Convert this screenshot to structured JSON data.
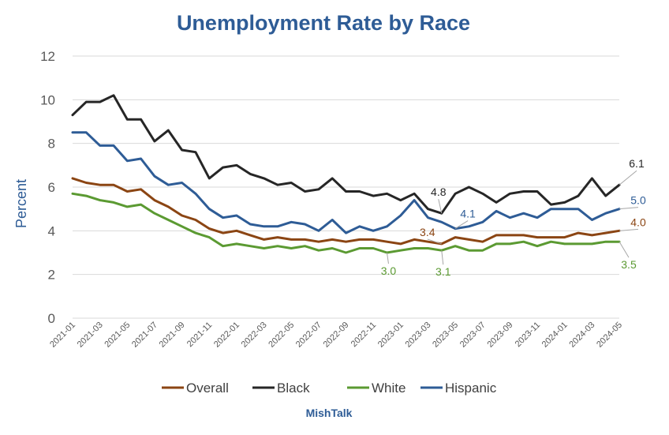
{
  "chart_data": {
    "type": "line",
    "title": "Unemployment Rate by Race",
    "xlabel": "",
    "ylabel": "Percent",
    "ylim": [
      0,
      12
    ],
    "yticks": [
      0,
      2,
      4,
      6,
      8,
      10,
      12
    ],
    "grid": true,
    "legend_position": "bottom",
    "x": [
      "2021-01",
      "2021-02",
      "2021-03",
      "2021-04",
      "2021-05",
      "2021-06",
      "2021-07",
      "2021-08",
      "2021-09",
      "2021-10",
      "2021-11",
      "2021-12",
      "2022-01",
      "2022-02",
      "2022-03",
      "2022-04",
      "2022-05",
      "2022-06",
      "2022-07",
      "2022-08",
      "2022-09",
      "2022-10",
      "2022-11",
      "2022-12",
      "2023-01",
      "2023-02",
      "2023-03",
      "2023-04",
      "2023-05",
      "2023-06",
      "2023-07",
      "2023-08",
      "2023-09",
      "2023-10",
      "2023-11",
      "2023-12",
      "2024-01",
      "2024-02",
      "2024-03",
      "2024-04",
      "2024-05"
    ],
    "xticks": [
      "2021-01",
      "2021-03",
      "2021-05",
      "2021-07",
      "2021-09",
      "2021-11",
      "2022-01",
      "2022-03",
      "2022-05",
      "2022-07",
      "2022-09",
      "2022-11",
      "2023-01",
      "2023-03",
      "2023-05",
      "2023-07",
      "2023-09",
      "2023-11",
      "2024-01",
      "2024-03",
      "2024-05"
    ],
    "series": [
      {
        "name": "Overall",
        "color": "#8B4513",
        "values": [
          6.4,
          6.2,
          6.1,
          6.1,
          5.8,
          5.9,
          5.4,
          5.1,
          4.7,
          4.5,
          4.1,
          3.9,
          4.0,
          3.8,
          3.6,
          3.7,
          3.6,
          3.6,
          3.5,
          3.6,
          3.5,
          3.6,
          3.6,
          3.5,
          3.4,
          3.6,
          3.5,
          3.4,
          3.7,
          3.6,
          3.5,
          3.8,
          3.8,
          3.8,
          3.7,
          3.7,
          3.7,
          3.9,
          3.8,
          3.9,
          4.0
        ]
      },
      {
        "name": "Black",
        "color": "#262626",
        "values": [
          9.3,
          9.9,
          9.9,
          10.2,
          9.1,
          9.1,
          8.1,
          8.6,
          7.7,
          7.6,
          6.4,
          6.9,
          7.0,
          6.6,
          6.4,
          6.1,
          6.2,
          5.8,
          5.9,
          6.4,
          5.8,
          5.8,
          5.6,
          5.7,
          5.4,
          5.7,
          5.0,
          4.8,
          5.7,
          6.0,
          5.7,
          5.3,
          5.7,
          5.8,
          5.8,
          5.2,
          5.3,
          5.6,
          6.4,
          5.6,
          6.1
        ]
      },
      {
        "name": "White",
        "color": "#5B9A32",
        "values": [
          5.7,
          5.6,
          5.4,
          5.3,
          5.1,
          5.2,
          4.8,
          4.5,
          4.2,
          3.9,
          3.7,
          3.3,
          3.4,
          3.3,
          3.2,
          3.3,
          3.2,
          3.3,
          3.1,
          3.2,
          3.0,
          3.2,
          3.2,
          3.0,
          3.1,
          3.2,
          3.2,
          3.1,
          3.3,
          3.1,
          3.1,
          3.4,
          3.4,
          3.5,
          3.3,
          3.5,
          3.4,
          3.4,
          3.4,
          3.5,
          3.5
        ]
      },
      {
        "name": "Hispanic",
        "color": "#2E5C96",
        "values": [
          8.5,
          8.5,
          7.9,
          7.9,
          7.2,
          7.3,
          6.5,
          6.1,
          6.2,
          5.7,
          5.0,
          4.6,
          4.7,
          4.3,
          4.2,
          4.2,
          4.4,
          4.3,
          4.0,
          4.5,
          3.9,
          4.2,
          4.0,
          4.2,
          4.7,
          5.4,
          4.6,
          4.4,
          4.1,
          4.2,
          4.4,
          4.9,
          4.6,
          4.8,
          4.6,
          5.0,
          5.0,
          5.0,
          4.5,
          4.8,
          5.0
        ]
      }
    ],
    "annotations": [
      {
        "text": "4.8",
        "series": "Black",
        "x": "2023-04",
        "color": "#262626"
      },
      {
        "text": "4.1",
        "series": "Hispanic",
        "x": "2023-05",
        "color": "#2E5C96"
      },
      {
        "text": "3.4",
        "series": "Overall",
        "x": "2023-04",
        "color": "#8B4513"
      },
      {
        "text": "3.0",
        "series": "White",
        "x": "2022-12",
        "color": "#5B9A32"
      },
      {
        "text": "3.1",
        "series": "White",
        "x": "2023-04",
        "color": "#5B9A32"
      },
      {
        "text": "6.1",
        "series": "Black",
        "x": "2024-05",
        "color": "#262626"
      },
      {
        "text": "5.0",
        "series": "Hispanic",
        "x": "2024-05",
        "color": "#2E5C96"
      },
      {
        "text": "4.0",
        "series": "Overall",
        "x": "2024-05",
        "color": "#8B4513"
      },
      {
        "text": "3.5",
        "series": "White",
        "x": "2024-05",
        "color": "#5B9A32"
      }
    ],
    "source_label": "MishTalk",
    "colors": {
      "title": "#2E5C96",
      "axis_label": "#2E5C96",
      "source": "#2E5C96",
      "grid": "#D9D9D9"
    }
  }
}
